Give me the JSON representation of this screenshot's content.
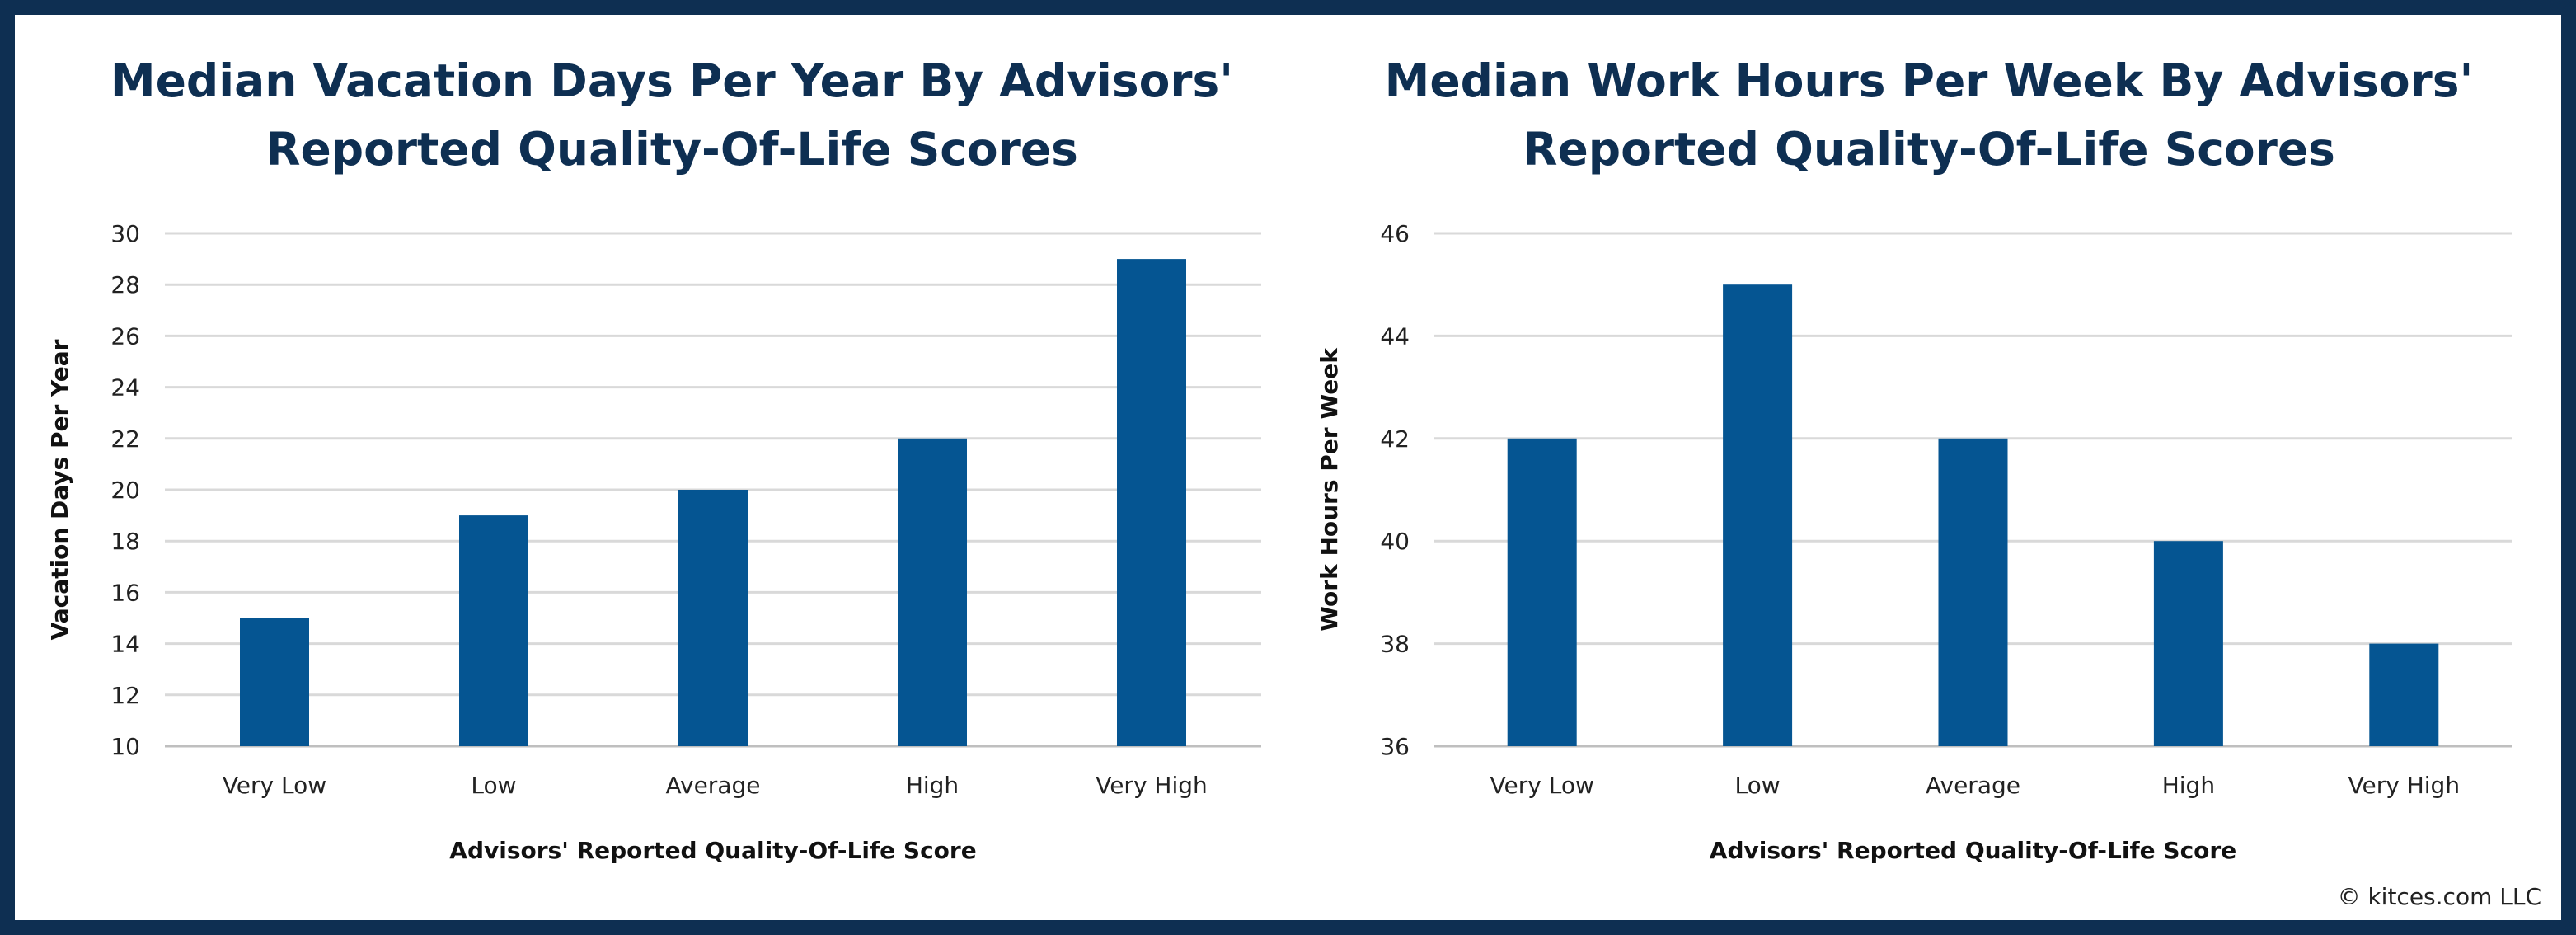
{
  "chart_data": [
    {
      "type": "bar",
      "title_lines": [
        "Median Vacation Days Per Year By Advisors'",
        "Reported Quality-Of-Life Scores"
      ],
      "xlabel": "Advisors' Reported Quality-Of-Life Score",
      "ylabel": "Vacation Days Per Year",
      "categories": [
        "Very Low",
        "Low",
        "Average",
        "High",
        "Very High"
      ],
      "values": [
        15,
        19,
        20,
        22,
        29
      ],
      "ylim": [
        10,
        30
      ],
      "yticks": [
        10,
        12,
        14,
        16,
        18,
        20,
        22,
        24,
        26,
        28,
        30
      ],
      "grid": true,
      "bar_color": "#055592"
    },
    {
      "type": "bar",
      "title_lines": [
        "Median Work Hours Per Week By Advisors'",
        "Reported Quality-Of-Life Scores"
      ],
      "xlabel": "Advisors' Reported Quality-Of-Life Score",
      "ylabel": "Work Hours Per Week",
      "categories": [
        "Very Low",
        "Low",
        "Average",
        "High",
        "Very High"
      ],
      "values": [
        42,
        45,
        42,
        40,
        38
      ],
      "ylim": [
        36,
        46
      ],
      "yticks": [
        36,
        38,
        40,
        42,
        44,
        46
      ],
      "grid": true,
      "bar_color": "#055592"
    }
  ],
  "footer": {
    "copyright": "© kitces.com LLC"
  },
  "colors": {
    "border": "#0e2f52",
    "title": "#0e2f52",
    "gridline": "#d9d9d9"
  }
}
